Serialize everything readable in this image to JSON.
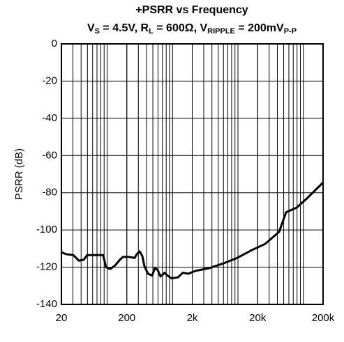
{
  "chart_data": {
    "type": "line",
    "title": "+PSRR vs Frequency",
    "subtitle": [
      "V",
      "S",
      " = 4.5V, R",
      "L",
      " = 600Ω, V",
      "RIPPLE",
      " = 200mV",
      "P-P"
    ],
    "y_label": "PSRR (dB)",
    "x_scale": "log",
    "xlim": [
      20,
      200000
    ],
    "xticks": [
      20,
      200,
      {
        "value": 2000,
        "label": "2k"
      },
      {
        "value": 20000,
        "label": "20k"
      },
      {
        "value": 200000,
        "label": "200k"
      }
    ],
    "ylim": [
      -140,
      0
    ],
    "yticks": [
      0,
      -20,
      -40,
      -60,
      -80,
      -100,
      -120,
      -140
    ],
    "grid": true,
    "minor_grid": true,
    "series": [
      {
        "name": "+PSRR",
        "color": "#000000",
        "x": [
          20,
          23.7,
          30.4,
          37,
          43.9,
          49.6,
          63,
          87,
          96,
          112,
          133,
          157,
          174,
          217,
          264,
          284,
          313,
          345,
          372,
          421,
          487,
          537,
          593,
          654,
          759,
          836,
          968,
          1208,
          1435,
          1747,
          2233,
          3650,
          5967,
          9750,
          15930,
          26060,
          42580,
          54450,
          78730,
          113800,
          200000
        ],
        "values": [
          -112,
          -113,
          -113.5,
          -116.5,
          -116,
          -113.5,
          -113.5,
          -113.5,
          -120,
          -121,
          -119,
          -116,
          -114.5,
          -114.5,
          -115,
          -113,
          -111.5,
          -114,
          -119.5,
          -123.5,
          -124.5,
          -120.5,
          -121.5,
          -125,
          -123,
          -124.5,
          -126,
          -125.5,
          -123,
          -123.5,
          -122,
          -120.5,
          -118,
          -115,
          -111,
          -107.5,
          -101,
          -90.5,
          -88,
          -83,
          -74.5
        ]
      }
    ]
  }
}
